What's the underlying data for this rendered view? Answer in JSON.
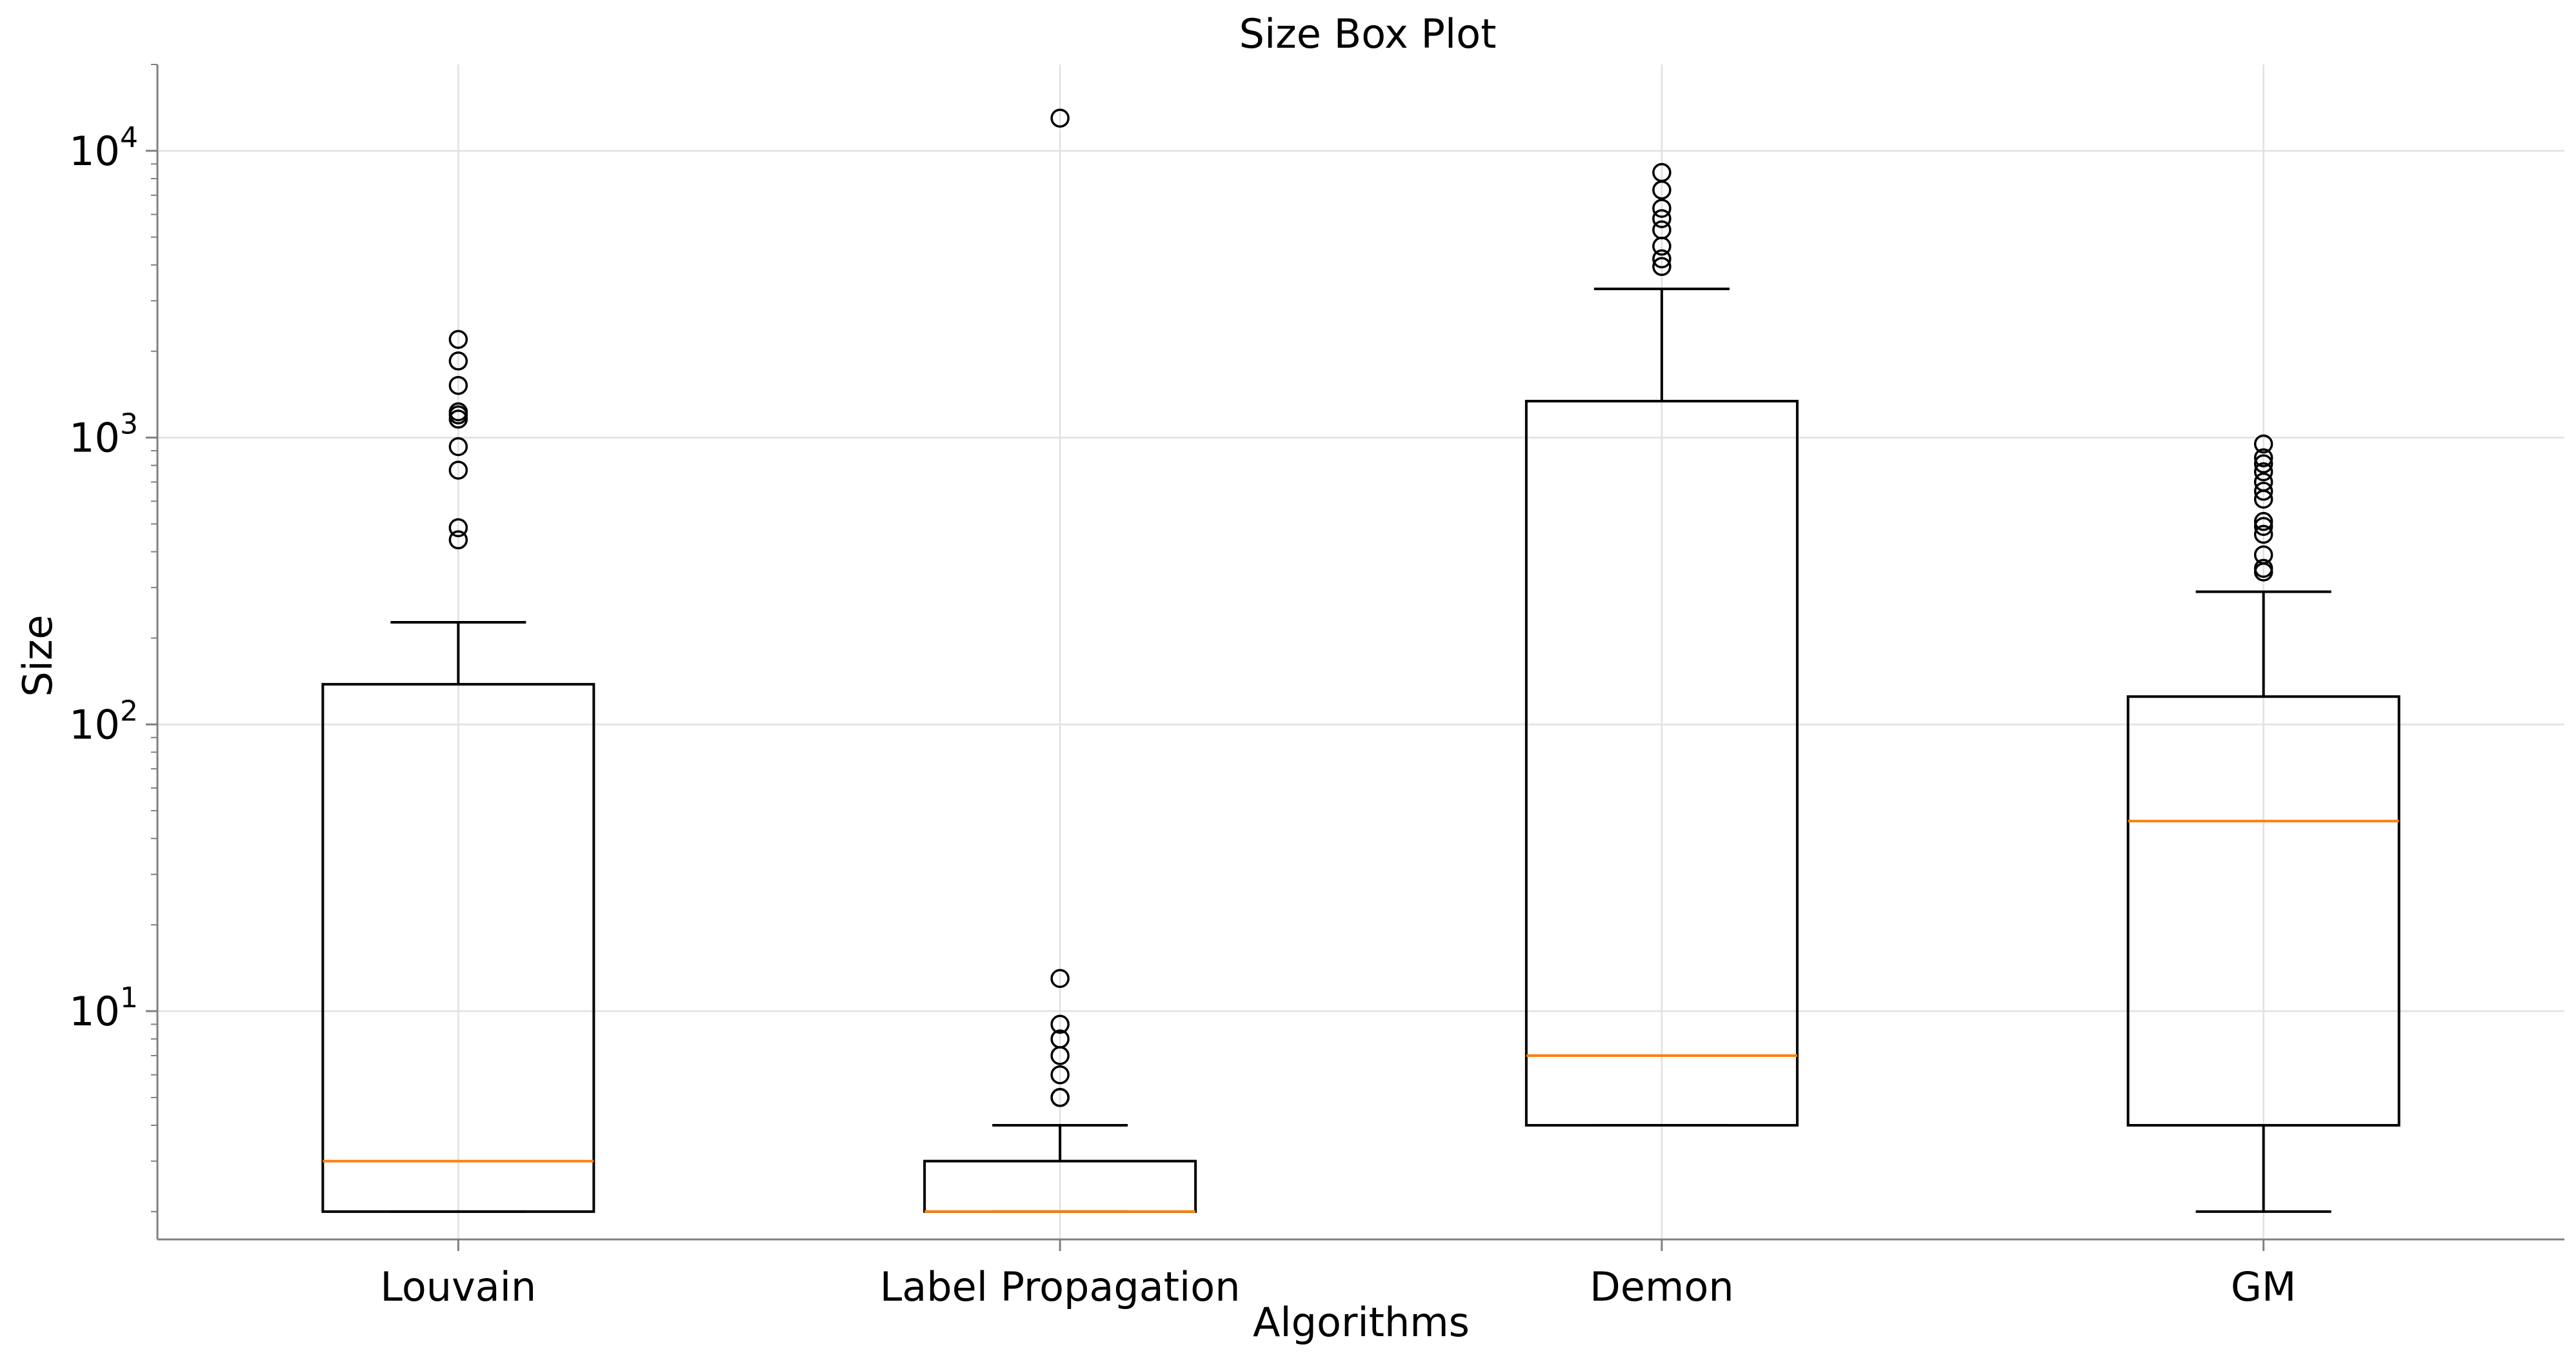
{
  "chart_data": {
    "type": "box",
    "title": "Size Box Plot",
    "xlabel": "Algorithms",
    "ylabel": "Size",
    "yscale": "log",
    "ylim": [
      1.6,
      20000
    ],
    "grid": true,
    "y_ticks": [
      {
        "value": 10,
        "base": "10",
        "exp": "1"
      },
      {
        "value": 100,
        "base": "10",
        "exp": "2"
      },
      {
        "value": 1000,
        "base": "10",
        "exp": "3"
      },
      {
        "value": 10000,
        "base": "10",
        "exp": "4"
      }
    ],
    "categories": [
      "Louvain",
      "Label Propagation",
      "Demon",
      "GM"
    ],
    "colors": {
      "box": "#000000",
      "median": "#ff7f0e",
      "grid": "#e0e0e0",
      "axis": "#808080"
    },
    "boxes": [
      {
        "name": "Louvain",
        "whisker_low": 2,
        "q1": 2,
        "median": 3,
        "q3": 138,
        "whisker_high": 227,
        "outliers": [
          440,
          485,
          770,
          930,
          1160,
          1200,
          1230,
          1520,
          1850,
          2200
        ]
      },
      {
        "name": "Label Propagation",
        "whisker_low": 2,
        "q1": 2,
        "median": 2,
        "q3": 3,
        "whisker_high": 4,
        "outliers": [
          5,
          5,
          6,
          7,
          8,
          9,
          13,
          13000
        ]
      },
      {
        "name": "Demon",
        "whisker_low": 4,
        "q1": 4,
        "median": 7,
        "q3": 1340,
        "whisker_high": 3300,
        "outliers": [
          3950,
          4200,
          4650,
          5300,
          5800,
          6300,
          7300,
          8400
        ]
      },
      {
        "name": "GM",
        "whisker_low": 2,
        "q1": 4,
        "median": 46,
        "q3": 125,
        "whisker_high": 290,
        "outliers": [
          340,
          350,
          390,
          460,
          490,
          510,
          610,
          650,
          700,
          760,
          810,
          850,
          950
        ]
      }
    ]
  }
}
